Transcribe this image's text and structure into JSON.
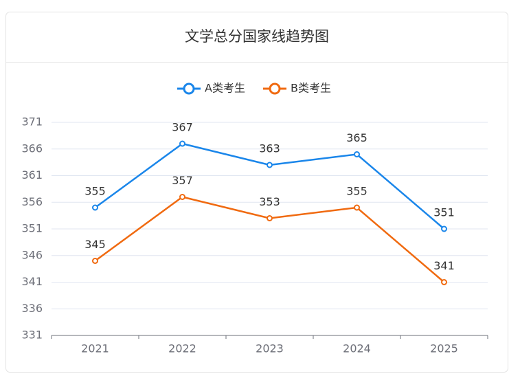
{
  "chart_data": {
    "type": "line",
    "title": "文学总分国家线趋势图",
    "categories": [
      "2021",
      "2022",
      "2023",
      "2024",
      "2025"
    ],
    "series": [
      {
        "name": "A类考生",
        "color": "#1a86ea",
        "values": [
          355,
          367,
          363,
          365,
          351
        ]
      },
      {
        "name": "B类考生",
        "color": "#f06a10",
        "values": [
          345,
          357,
          353,
          355,
          341
        ]
      }
    ],
    "ylim": [
      331,
      371
    ],
    "yticks": [
      331,
      336,
      341,
      346,
      351,
      356,
      361,
      366,
      371
    ],
    "grid": true
  }
}
